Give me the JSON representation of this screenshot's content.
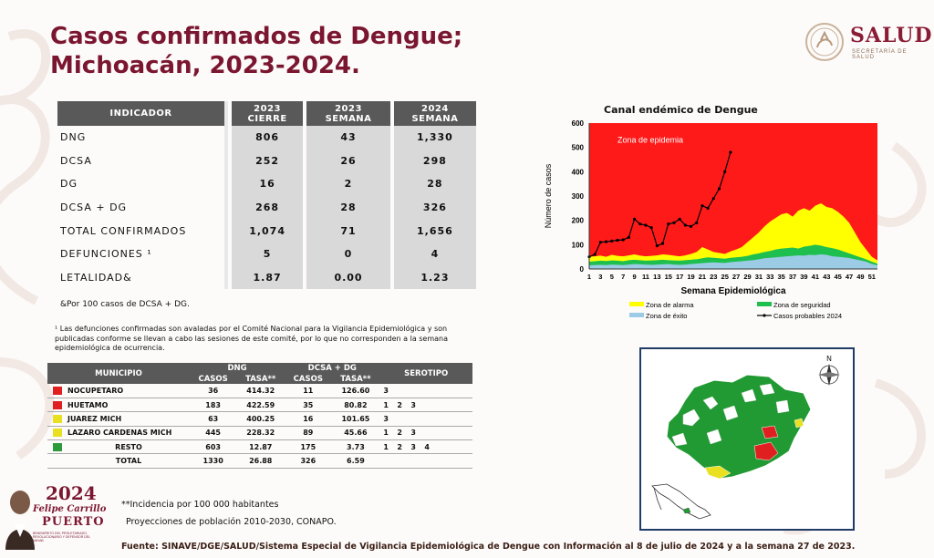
{
  "title": {
    "line1": "Casos confirmados de Dengue;",
    "line2": "Michoacán, 2023-2024."
  },
  "header_logo": {
    "name": "SALUD",
    "subtitle": "SECRETARÍA DE SALUD"
  },
  "indicator_table": {
    "columns": [
      {
        "h1": "INDICADOR",
        "h2": ""
      },
      {
        "h1": "2023",
        "h2": "CIERRE"
      },
      {
        "h1": "2023",
        "h2": "SEMANA"
      },
      {
        "h1": "2024",
        "h2": "SEMANA"
      }
    ],
    "rows": [
      {
        "label": "DNG",
        "v1": "806",
        "v2": "43",
        "v3": "1,330"
      },
      {
        "label": "DCSA",
        "v1": "252",
        "v2": "26",
        "v3": "298"
      },
      {
        "label": "DG",
        "v1": "16",
        "v2": "2",
        "v3": "28"
      },
      {
        "label": "DCSA + DG",
        "v1": "268",
        "v2": "28",
        "v3": "326"
      },
      {
        "label": "TOTAL CONFIRMADOS",
        "v1": "1,074",
        "v2": "71",
        "v3": "1,656"
      },
      {
        "label": "DEFUNCIONES ¹",
        "v1": "5",
        "v2": "0",
        "v3": "4"
      },
      {
        "label": "LETALIDAD&",
        "v1": "1.87",
        "v2": "0.00",
        "v3": "1.23"
      }
    ]
  },
  "note_rate": "&Por 100 casos de DCSA + DG.",
  "note_deaths": "¹ Las defunciones confirmadas son avaladas por el Comité Nacional para la Vigilancia Epidemiológica y son publicadas conforme se llevan a cabo las sesiones de este comité, por lo que no corresponden a la semana epidemiológica de ocurrencia.",
  "municipio_table": {
    "h_municipio": "MUNICIPIO",
    "h_dng": "DNG",
    "h_dcsa": "DCSA + DG",
    "h_serotipo": "SEROTIPO",
    "h_casos": "CASOS",
    "h_tasa": "TASA**",
    "rows": [
      {
        "color": "#e02020",
        "name": "NOCUPETARO",
        "dng_casos": "36",
        "dng_tasa": "414.32",
        "dcsa_casos": "11",
        "dcsa_tasa": "126.60",
        "serotipos": [
          "3"
        ]
      },
      {
        "color": "#e02020",
        "name": "HUETAMO",
        "dng_casos": "183",
        "dng_tasa": "422.59",
        "dcsa_casos": "35",
        "dcsa_tasa": "80.82",
        "serotipos": [
          "1",
          "2",
          "3"
        ]
      },
      {
        "color": "#e8e020",
        "name": "JUAREZ MICH",
        "dng_casos": "63",
        "dng_tasa": "400.25",
        "dcsa_casos": "16",
        "dcsa_tasa": "101.65",
        "serotipos": [
          "3"
        ]
      },
      {
        "color": "#e8e020",
        "name": "LAZARO CARDENAS MICH",
        "dng_casos": "445",
        "dng_tasa": "228.32",
        "dcsa_casos": "89",
        "dcsa_tasa": "45.66",
        "serotipos": [
          "1",
          "2",
          "3"
        ]
      },
      {
        "color": "#2a9a3a",
        "name": "RESTO",
        "dng_casos": "603",
        "dng_tasa": "12.87",
        "dcsa_casos": "175",
        "dcsa_tasa": "3.73",
        "serotipos": [
          "1",
          "2",
          "3",
          "4"
        ]
      },
      {
        "color": "",
        "name": "TOTAL",
        "dng_casos": "1330",
        "dng_tasa": "26.88",
        "dcsa_casos": "326",
        "dcsa_tasa": "6.59",
        "serotipos": []
      }
    ]
  },
  "footnote_rate": "**Incidencia por 100 000 habitantes",
  "footnote_pop": "Proyecciones de población 2010-2030,  CONAPO.",
  "source": "Fuente: SINAVE/DGE/SALUD/Sistema Especial de Vigilancia Epidemiológica de Dengue con Información al 8 de julio de 2024 y a la semana 27 de 2023.",
  "brand": {
    "year": "2024",
    "name": "Felipe Carrillo",
    "surname": "PUERTO",
    "tagline": "BENEMÉRITO DEL PROLETARIADO, REVOLUCIONARIO Y DEFENSOR DEL MAYAB"
  },
  "map": {
    "compass_label": "N"
  },
  "chart_data": {
    "type": "area",
    "title": "Canal endémico de Dengue",
    "xlabel": "Semana Epidemiológica",
    "ylabel": "Número de casos",
    "ylim": [
      0,
      600
    ],
    "yticks": [
      0,
      100,
      200,
      300,
      400,
      500,
      600
    ],
    "xlim": [
      1,
      52
    ],
    "xticks": [
      1,
      3,
      5,
      7,
      9,
      11,
      13,
      15,
      17,
      19,
      21,
      23,
      25,
      27,
      29,
      31,
      33,
      35,
      37,
      39,
      41,
      43,
      45,
      47,
      49,
      51
    ],
    "annotation": "Zona de epidemia",
    "colors": {
      "epidemia": "#ff1a1a",
      "alarma": "#ffff00",
      "seguridad": "#1fbf4f",
      "exito": "#9ccbe6",
      "line": "#000000"
    },
    "weeks": [
      1,
      2,
      3,
      4,
      5,
      6,
      7,
      8,
      9,
      10,
      11,
      12,
      13,
      14,
      15,
      16,
      17,
      18,
      19,
      20,
      21,
      22,
      23,
      24,
      25,
      26,
      27,
      28,
      29,
      30,
      31,
      32,
      33,
      34,
      35,
      36,
      37,
      38,
      39,
      40,
      41,
      42,
      43,
      44,
      45,
      46,
      47,
      48,
      49,
      50,
      51,
      52
    ],
    "exito": [
      15,
      16,
      17,
      16,
      18,
      17,
      16,
      18,
      20,
      19,
      18,
      17,
      18,
      19,
      20,
      18,
      17,
      18,
      20,
      22,
      24,
      26,
      27,
      26,
      25,
      28,
      30,
      32,
      34,
      36,
      40,
      44,
      46,
      48,
      50,
      52,
      54,
      56,
      55,
      58,
      57,
      60,
      58,
      52,
      50,
      48,
      45,
      40,
      35,
      30,
      20,
      15
    ],
    "seguridad": [
      30,
      32,
      34,
      33,
      35,
      34,
      32,
      36,
      38,
      36,
      34,
      35,
      36,
      38,
      36,
      35,
      34,
      36,
      38,
      40,
      44,
      48,
      46,
      44,
      42,
      46,
      48,
      50,
      54,
      60,
      64,
      70,
      74,
      80,
      84,
      86,
      88,
      84,
      92,
      95,
      100,
      96,
      90,
      86,
      80,
      72,
      64,
      56,
      48,
      40,
      30,
      22
    ],
    "alarma": [
      50,
      52,
      55,
      50,
      58,
      54,
      52,
      56,
      60,
      55,
      52,
      54,
      56,
      60,
      58,
      55,
      52,
      56,
      62,
      70,
      90,
      80,
      70,
      66,
      62,
      72,
      80,
      90,
      110,
      130,
      150,
      175,
      195,
      210,
      225,
      230,
      215,
      240,
      250,
      240,
      260,
      270,
      255,
      250,
      235,
      215,
      190,
      150,
      110,
      80,
      50,
      35
    ],
    "series": [
      {
        "name": "Zona de alarma",
        "color": "#ffff00"
      },
      {
        "name": "Zona de seguridad",
        "color": "#1fbf4f"
      },
      {
        "name": "Zona de éxito",
        "color": "#9ccbe6"
      },
      {
        "name": "Casos probables 2024",
        "color": "#000000"
      }
    ],
    "casos_2024_weeks": [
      1,
      2,
      3,
      4,
      5,
      6,
      7,
      8,
      9,
      10,
      11,
      12,
      13,
      14,
      15,
      16,
      17,
      18,
      19,
      20,
      21,
      22,
      23,
      24,
      25,
      26
    ],
    "casos_2024": [
      50,
      60,
      110,
      112,
      115,
      118,
      120,
      130,
      205,
      185,
      180,
      170,
      95,
      105,
      185,
      190,
      205,
      180,
      175,
      190,
      260,
      250,
      290,
      330,
      400,
      480
    ]
  }
}
